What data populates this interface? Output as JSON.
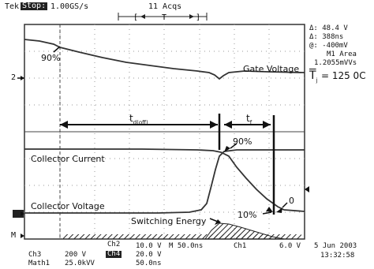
{
  "header": {
    "brand": "Tek",
    "status": "Stop:",
    "sample_rate": "1.00GS/s",
    "acqs": "11 Acqs"
  },
  "measurements": {
    "delta_v": "Δ: 48.4 V",
    "delta_t": "Δ: 388ns",
    "at_v": "@: -400mV",
    "m1_label": "M1 Area",
    "m1_value": "1.2055mVVs",
    "temp": "T",
    "temp_sub": "j",
    "temp_value": "= 125 0C"
  },
  "plot": {
    "marker_2": "2",
    "marker_m": "M",
    "label_90_top": "90%",
    "gate_voltage": "Gate Voltage",
    "td_off": "t",
    "td_off_sub": "d(off)",
    "tf": "t",
    "tf_sub": "f",
    "label_90_mid": "90%",
    "collector_current": "Collector Current",
    "collector_voltage": "Collector Voltage",
    "label_10": "10%",
    "label_0": "0",
    "switching_energy": "Switching Energy"
  },
  "footer": {
    "ch2": "Ch2",
    "ch2_scale": "10.0 V",
    "m_time": "M 50.0ns",
    "ch1": "Ch1",
    "ch1_trig": "6.0 V",
    "ch3": "Ch3",
    "ch3_scale": "200 V",
    "ch4_badge": "Ch4",
    "ch4_scale": "20.0 V",
    "math1": "Math1",
    "math1_scale": "25.0kVV",
    "math1_time": "50.0ns",
    "date": "5 Jun 2003",
    "time": "13:32:58"
  }
}
